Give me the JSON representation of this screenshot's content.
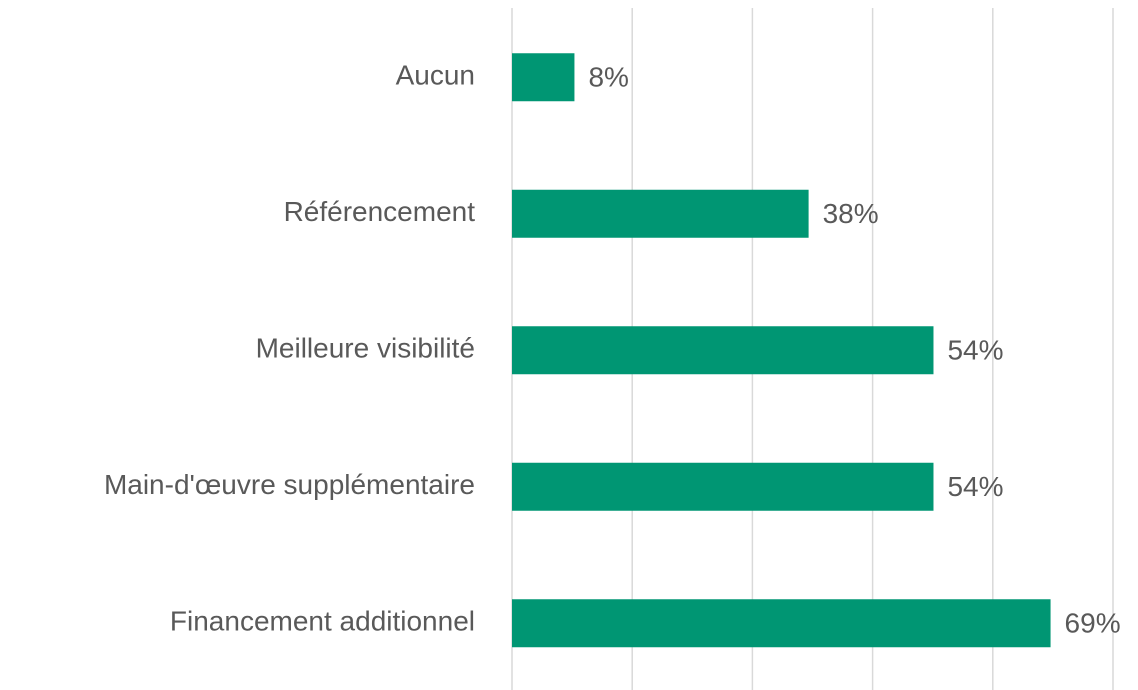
{
  "chart_data": {
    "type": "bar",
    "orientation": "horizontal",
    "categories": [
      "Aucun",
      "Référencement",
      "Meilleure visibilité",
      "Main-d'œuvre supplémentaire",
      "Financement additionnel"
    ],
    "values": [
      8,
      38,
      54,
      54,
      69
    ],
    "value_labels": [
      "8%",
      "38%",
      "54%",
      "54%",
      "69%"
    ],
    "color": "#009673",
    "xlim": [
      0,
      77
    ],
    "xticks": [
      0,
      15.4,
      30.8,
      46.2,
      61.6,
      77
    ],
    "grid": true
  }
}
